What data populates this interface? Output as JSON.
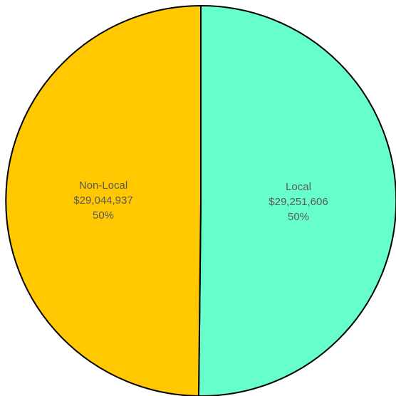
{
  "chart_data": {
    "type": "pie",
    "title": "",
    "categories": [
      "Local",
      "Non-Local"
    ],
    "values": [
      29251606,
      29044937
    ],
    "value_labels": [
      "$29,251,606",
      "$29,044,937"
    ],
    "percent_labels": [
      "50%",
      "50%"
    ],
    "colors": [
      "#66FFCC",
      "#FFC800"
    ],
    "outline_color": "#000000",
    "legend": "none",
    "start_angle_deg": 0,
    "direction": "clockwise"
  }
}
